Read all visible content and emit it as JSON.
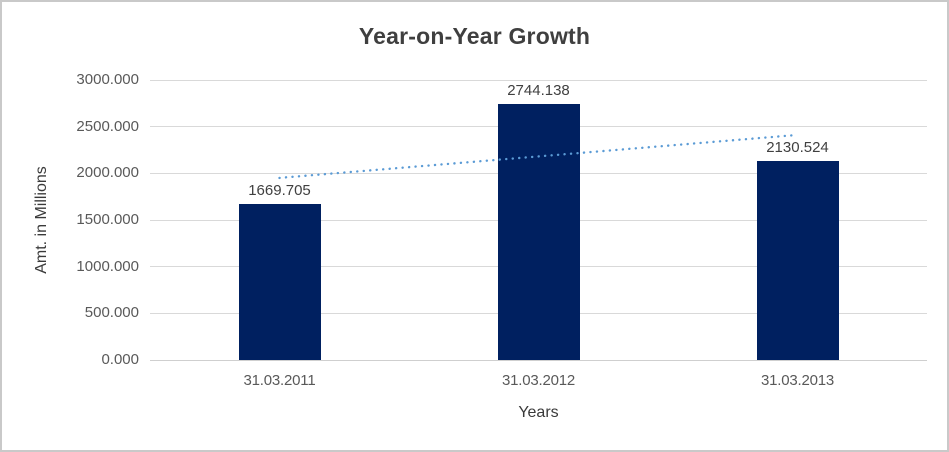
{
  "chart_data": {
    "type": "bar",
    "title": "Year-on-Year Growth",
    "categories": [
      "31.03.2011",
      "31.03.2012",
      "31.03.2013"
    ],
    "values": [
      1669.705,
      2744.138,
      2130.524
    ],
    "data_labels": [
      "1669.705",
      "2744.138",
      "2130.524"
    ],
    "xlabel": "Years",
    "ylabel": "Amt. in Millions",
    "ylim": [
      0,
      3000
    ],
    "ytick_step": 500,
    "ytick_labels": [
      "0.000",
      "500.000",
      "1000.000",
      "1500.000",
      "2000.000",
      "2500.000",
      "3000.000"
    ],
    "grid": true,
    "legend": "none",
    "trendline": {
      "type": "linear",
      "style": "dotted",
      "color": "#5b9bd5"
    },
    "colors": {
      "bar": "#002060",
      "gridline": "#d9d9d9",
      "axis_line": "#cfcfcf",
      "title_text": "#3f3f3f",
      "tick_text": "#595959",
      "data_label_text": "#404040",
      "frame_border": "#c9c9c9",
      "background": "#ffffff"
    }
  }
}
